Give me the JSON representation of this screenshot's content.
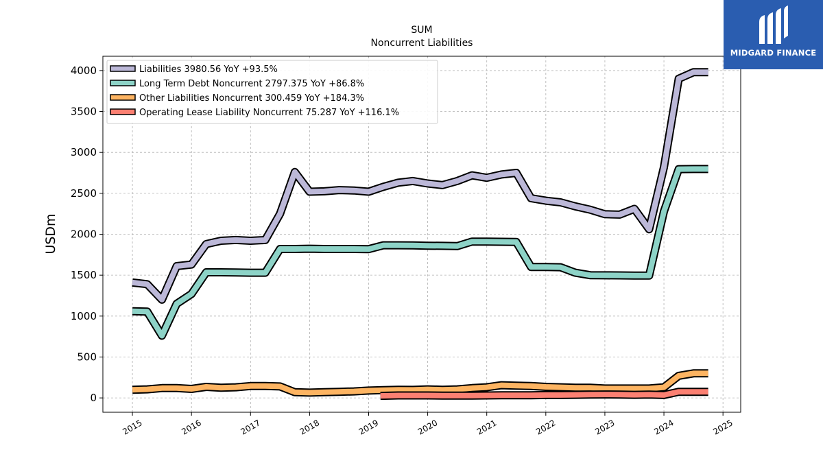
{
  "brand": {
    "name": "MIDGARD FINANCE",
    "bg_color": "#2a5db0"
  },
  "chart_data": {
    "type": "line",
    "title": "SUM",
    "subtitle": "Noncurrent  Liabilities",
    "xlabel": "",
    "ylabel": "USDm",
    "xlim": [
      2014.5,
      2025.3
    ],
    "ylim": [
      -175,
      4175
    ],
    "x_ticks": [
      "2015",
      "2016",
      "2017",
      "2018",
      "2019",
      "2020",
      "2021",
      "2022",
      "2023",
      "2024",
      "2025"
    ],
    "y_ticks": [
      "0",
      "500",
      "1000",
      "1500",
      "2000",
      "2500",
      "3000",
      "3500",
      "4000"
    ],
    "grid": true,
    "legend_position": "top-left",
    "series": [
      {
        "name": "Liabilities",
        "legend": "Liabilities  3980.56 YoY +93.5%",
        "color": "#bcb8d8",
        "x": [
          2015.0,
          2015.25,
          2015.5,
          2015.75,
          2016.0,
          2016.25,
          2016.5,
          2016.75,
          2017.0,
          2017.25,
          2017.5,
          2017.75,
          2018.0,
          2018.25,
          2018.5,
          2018.75,
          2019.0,
          2019.25,
          2019.5,
          2019.75,
          2020.0,
          2020.25,
          2020.5,
          2020.75,
          2021.0,
          2021.25,
          2021.5,
          2021.75,
          2022.0,
          2022.25,
          2022.5,
          2022.75,
          2023.0,
          2023.25,
          2023.5,
          2023.75,
          2024.0,
          2024.25,
          2024.5,
          2024.75
        ],
        "y": [
          1410,
          1390,
          1200,
          1610,
          1630,
          1880,
          1920,
          1930,
          1920,
          1930,
          2250,
          2760,
          2520,
          2525,
          2540,
          2535,
          2520,
          2580,
          2630,
          2650,
          2620,
          2600,
          2650,
          2720,
          2690,
          2730,
          2750,
          2440,
          2410,
          2390,
          2340,
          2300,
          2245,
          2240,
          2310,
          2060,
          2820,
          3900,
          3980,
          3980
        ]
      },
      {
        "name": "Long Term Debt Noncurrent",
        "legend": "Long Term Debt Noncurrent  2797.375 YoY +86.8%",
        "color": "#8dd3c7",
        "x": [
          2015.0,
          2015.25,
          2015.5,
          2015.75,
          2016.0,
          2016.25,
          2016.5,
          2016.75,
          2017.0,
          2017.25,
          2017.5,
          2017.75,
          2018.0,
          2018.25,
          2018.5,
          2018.75,
          2019.0,
          2019.25,
          2019.5,
          2019.75,
          2020.0,
          2020.25,
          2020.5,
          2020.75,
          2021.0,
          2021.25,
          2021.5,
          2021.75,
          2022.0,
          2022.25,
          2022.5,
          2022.75,
          2023.0,
          2023.25,
          2023.5,
          2023.75,
          2024.0,
          2024.25,
          2024.5,
          2024.75
        ],
        "y": [
          1060,
          1055,
          760,
          1150,
          1270,
          1535,
          1535,
          1533,
          1530,
          1530,
          1820,
          1820,
          1823,
          1820,
          1820,
          1820,
          1818,
          1865,
          1865,
          1863,
          1860,
          1858,
          1855,
          1910,
          1910,
          1908,
          1905,
          1600,
          1600,
          1597,
          1530,
          1500,
          1498,
          1497,
          1495,
          1495,
          2280,
          2795,
          2797,
          2797
        ]
      },
      {
        "name": "Other Liabilities Noncurrent",
        "legend": "Other Liabilities Noncurrent  300.459 YoY +184.3%",
        "color": "#fdb462",
        "x": [
          2015.0,
          2015.25,
          2015.5,
          2015.75,
          2016.0,
          2016.25,
          2016.5,
          2016.75,
          2017.0,
          2017.25,
          2017.5,
          2017.75,
          2018.0,
          2018.25,
          2018.5,
          2018.75,
          2019.0,
          2019.25,
          2019.5,
          2019.75,
          2020.0,
          2020.25,
          2020.5,
          2020.75,
          2021.0,
          2021.25,
          2021.5,
          2021.75,
          2022.0,
          2022.25,
          2022.5,
          2022.75,
          2023.0,
          2023.25,
          2023.5,
          2023.75,
          2024.0,
          2024.25,
          2024.5,
          2024.75
        ],
        "y": [
          100,
          105,
          120,
          120,
          110,
          135,
          125,
          130,
          145,
          145,
          140,
          70,
          65,
          70,
          75,
          80,
          90,
          95,
          100,
          98,
          105,
          100,
          105,
          120,
          130,
          155,
          150,
          145,
          135,
          130,
          125,
          125,
          115,
          115,
          115,
          115,
          130,
          270,
          300,
          300
        ]
      },
      {
        "name": "Operating Lease Liability Noncurrent",
        "legend": "Operating Lease Liability Noncurrent  75.287 YoY +116.1%",
        "color": "#fb8072",
        "x": [
          2019.2,
          2019.5,
          2019.75,
          2020.0,
          2020.25,
          2020.5,
          2020.75,
          2021.0,
          2021.25,
          2021.5,
          2021.75,
          2022.0,
          2022.25,
          2022.5,
          2022.75,
          2023.0,
          2023.25,
          2023.5,
          2023.75,
          2024.0,
          2024.25,
          2024.5,
          2024.75
        ],
        "y": [
          25,
          30,
          30,
          30,
          28,
          28,
          28,
          30,
          32,
          32,
          32,
          35,
          35,
          38,
          40,
          42,
          40,
          38,
          40,
          35,
          75,
          75,
          75
        ]
      }
    ]
  }
}
